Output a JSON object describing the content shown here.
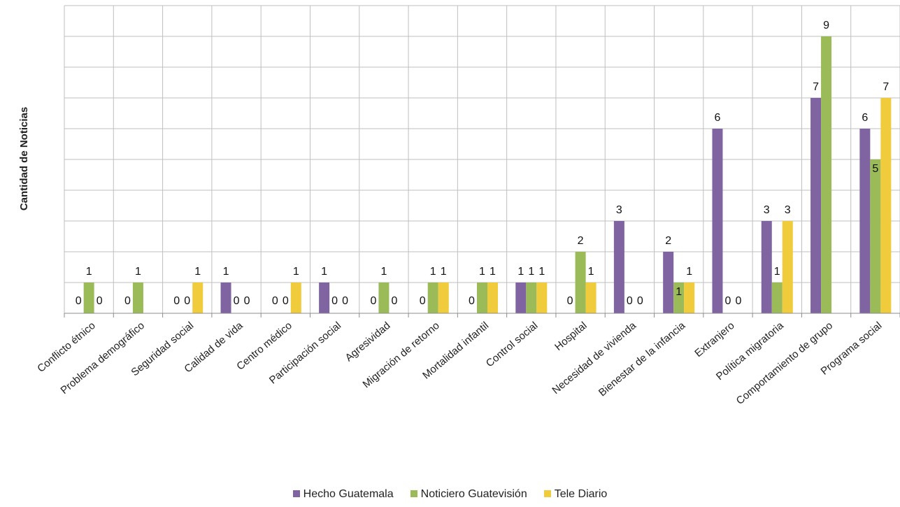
{
  "chart_data": {
    "type": "bar",
    "ylabel": "Cantidad de Noticias",
    "xlabel": "",
    "ylim": [
      0,
      10
    ],
    "grid": true,
    "legend_position": "bottom",
    "categories": [
      "Conflicto étnico",
      "Problema demográfico",
      "Seguridad social",
      "Calidad de vida",
      "Centro médico",
      "Participación social",
      "Agresividad",
      "Migración de retorno",
      "Mortalidad infantil",
      "Control social",
      "Hospital",
      "Necesidad de vivienda",
      "Bienestar de la infancia",
      "Extranjero",
      "Política migratoria",
      "Comportamiento de grupo",
      "Programa social"
    ],
    "series": [
      {
        "name": "Hecho Guatemala",
        "color": "#8064A2",
        "values": [
          0,
          0,
          0,
          1,
          0,
          1,
          0,
          0,
          0,
          1,
          0,
          3,
          2,
          6,
          3,
          7,
          6
        ]
      },
      {
        "name": "Noticiero Guatevisión",
        "color": "#9BBB59",
        "values": [
          1,
          1,
          0,
          0,
          0,
          0,
          1,
          1,
          1,
          1,
          2,
          0,
          1,
          0,
          1,
          9,
          5
        ]
      },
      {
        "name": "Tele Diario",
        "color": "#F0CB3C",
        "values": [
          0,
          null,
          1,
          0,
          1,
          0,
          0,
          1,
          1,
          1,
          1,
          0,
          1,
          0,
          3,
          null,
          7
        ]
      }
    ]
  }
}
